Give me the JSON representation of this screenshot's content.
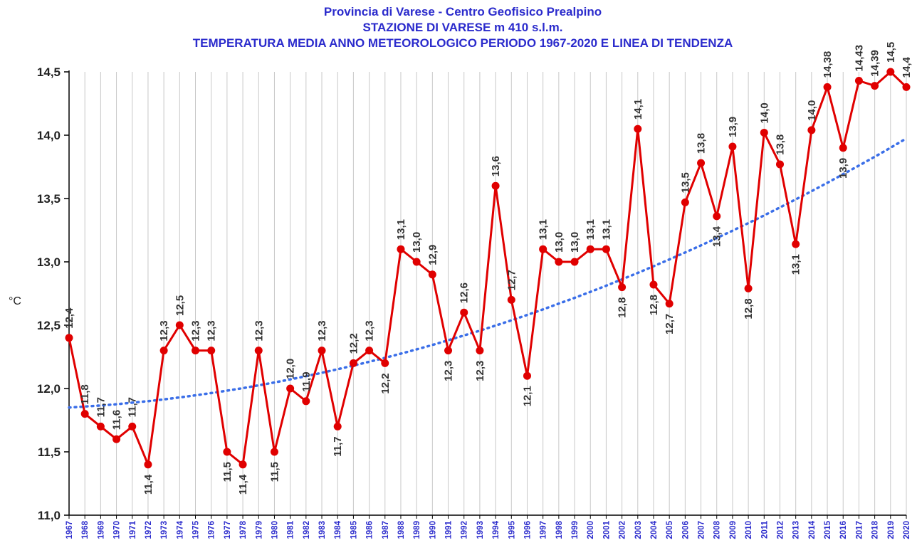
{
  "chart_data": {
    "type": "line",
    "title_lines": [
      "Provincia di Varese  - Centro Geofisico Prealpino",
      "STAZIONE DI VARESE m 410 s.l.m.",
      "TEMPERATURA MEDIA ANNO METEOROLOGICO  PERIODO 1967-2020 E LINEA DI TENDENZA"
    ],
    "ylabel": "°C",
    "xlabel": "",
    "ylim": [
      11.0,
      14.5
    ],
    "yticks": [
      "11,0",
      "11,5",
      "12,0",
      "12,5",
      "13,0",
      "13,5",
      "14,0",
      "14,5"
    ],
    "grid": "vertical",
    "colors": {
      "title": "#2b2bcc",
      "series": "#e00000",
      "trend": "#3a6ee8",
      "xtick": "#2b2bcc",
      "grid": "#c8c8c8"
    },
    "categories": [
      "1967",
      "1968",
      "1969",
      "1970",
      "1971",
      "1972",
      "1973",
      "1974",
      "1975",
      "1976",
      "1977",
      "1978",
      "1979",
      "1980",
      "1981",
      "1982",
      "1983",
      "1984",
      "1985",
      "1986",
      "1987",
      "1988",
      "1989",
      "1990",
      "1991",
      "1992",
      "1993",
      "1994",
      "1995",
      "1996",
      "1997",
      "1998",
      "1999",
      "2000",
      "2001",
      "2002",
      "2003",
      "2004",
      "2005",
      "2006",
      "2007",
      "2008",
      "2009",
      "2010",
      "2011",
      "2012",
      "2013",
      "2014",
      "2015",
      "2016",
      "2017",
      "2018",
      "2019",
      "2020"
    ],
    "series": [
      {
        "values": [
          12.4,
          11.8,
          11.7,
          11.6,
          11.7,
          11.4,
          12.3,
          12.5,
          12.3,
          12.3,
          11.5,
          11.4,
          12.3,
          11.5,
          12.0,
          11.9,
          12.3,
          11.7,
          12.2,
          12.3,
          12.2,
          13.1,
          13.0,
          12.9,
          12.3,
          12.6,
          12.3,
          13.6,
          12.7,
          12.1,
          13.1,
          13.0,
          13.0,
          13.1,
          13.1,
          12.8,
          14.05,
          12.82,
          12.67,
          13.47,
          13.78,
          13.36,
          13.91,
          12.79,
          14.02,
          13.77,
          13.14,
          14.04,
          14.38,
          13.9,
          14.43,
          14.39,
          14.5,
          14.38
        ],
        "labels": [
          "12,4",
          "11,8",
          "11,7",
          "11,6",
          "11,7",
          "11,4",
          "12,3",
          "12,5",
          "12,3",
          "12,3",
          "11,5",
          "11,4",
          "12,3",
          "11,5",
          "12,0",
          "11,9",
          "12,3",
          "11,7",
          "12,2",
          "12,3",
          "12,2",
          "13,1",
          "13,0",
          "12,9",
          "12,3",
          "12,6",
          "12,3",
          "13,6",
          "12,7",
          "12,1",
          "13,1",
          "13,0",
          "13,0",
          "13,1",
          "13,1",
          "12,8",
          "14,1",
          "12,8",
          "12,7",
          "13,5",
          "13,8",
          "13,4",
          "13,9",
          "12,8",
          "14,0",
          "13,8",
          "13,1",
          "14,0",
          "14,38",
          "13,9",
          "14,43",
          "14,39",
          "14,5",
          "14,4"
        ],
        "label_pos": [
          "above",
          "above",
          "above",
          "above",
          "above",
          "below",
          "above",
          "above",
          "above",
          "above",
          "below",
          "below",
          "above",
          "below",
          "above",
          "above",
          "above",
          "below",
          "above",
          "above",
          "below",
          "above",
          "above",
          "above",
          "below",
          "above",
          "below",
          "above",
          "above",
          "below",
          "above",
          "above",
          "above",
          "above",
          "above",
          "below",
          "above",
          "below",
          "below",
          "above",
          "above",
          "below",
          "above",
          "below",
          "above",
          "above",
          "below",
          "above",
          "above",
          "below",
          "above",
          "above",
          "above",
          "above"
        ]
      },
      {
        "name": "trend",
        "style": "dotted",
        "values": [
          11.85,
          11.858,
          11.866,
          11.876,
          11.888,
          11.9,
          11.914,
          11.93,
          11.946,
          11.964,
          11.983,
          12.003,
          12.025,
          12.048,
          12.072,
          12.097,
          12.124,
          12.152,
          12.181,
          12.211,
          12.242,
          12.275,
          12.309,
          12.344,
          12.381,
          12.419,
          12.457,
          12.497,
          12.538,
          12.581,
          12.625,
          12.67,
          12.716,
          12.763,
          12.812,
          12.862,
          12.913,
          12.966,
          13.019,
          13.074,
          13.13,
          13.188,
          13.246,
          13.306,
          13.367,
          13.43,
          13.493,
          13.558,
          13.624,
          13.692,
          13.76,
          13.83,
          13.901,
          13.974
        ]
      }
    ]
  }
}
